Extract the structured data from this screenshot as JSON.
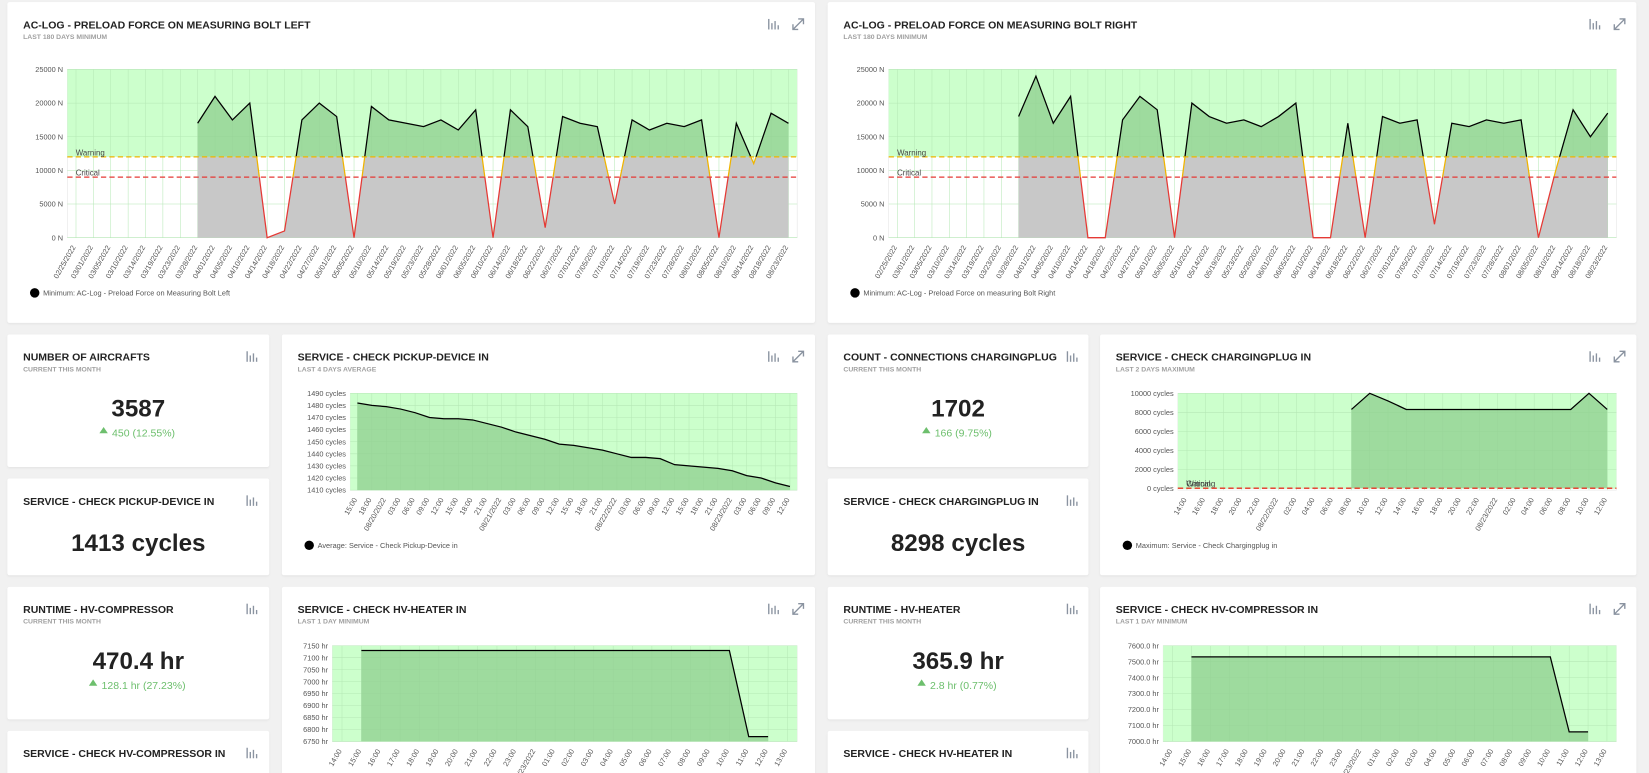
{
  "chart_data": [
    {
      "type": "line",
      "title": "AC-LOG - PRELOAD FORCE ON MEASURING BOLT LEFT",
      "subtitle": "LAST 180 DAYS MINIMUM",
      "categories": [
        "02/25/2022",
        "03/01/2022",
        "03/05/2022",
        "03/10/2022",
        "03/14/2022",
        "03/19/2022",
        "03/23/2022",
        "03/28/2022",
        "04/01/2022",
        "04/05/2022",
        "04/10/2022",
        "04/14/2022",
        "04/18/2022",
        "04/22/2022",
        "04/27/2022",
        "05/01/2022",
        "05/05/2022",
        "05/10/2022",
        "05/14/2022",
        "05/19/2022",
        "05/23/2022",
        "05/28/2022",
        "06/01/2022",
        "06/05/2022",
        "06/10/2022",
        "06/14/2022",
        "06/18/2022",
        "06/22/2022",
        "06/27/2022",
        "07/01/2022",
        "07/05/2022",
        "07/10/2022",
        "07/14/2022",
        "07/19/2022",
        "07/23/2022",
        "07/28/2022",
        "08/01/2022",
        "08/05/2022",
        "08/10/2022",
        "08/14/2022",
        "08/18/2022",
        "08/23/2022"
      ],
      "series": [
        {
          "name": "Minimum: AC-Log - Preload Force on Measuring Bolt Left",
          "color": "#000000",
          "values": [
            null,
            null,
            null,
            null,
            null,
            null,
            null,
            17000,
            21000,
            17500,
            20000,
            0,
            1000,
            17500,
            20000,
            18000,
            0,
            19500,
            17500,
            17000,
            16500,
            17500,
            16000,
            19000,
            0,
            19000,
            16500,
            1500,
            18000,
            17000,
            16500,
            5000,
            17500,
            16000,
            17000,
            16500,
            17500,
            0,
            17000,
            11000,
            18500,
            17000
          ]
        }
      ],
      "ylim": [
        0,
        25000
      ],
      "yticks": [
        {
          "value": 0,
          "label": "0 N"
        },
        {
          "value": 5000,
          "label": "5000 N"
        },
        {
          "value": 10000,
          "label": "10000 N"
        },
        {
          "value": 15000,
          "label": "15000 N"
        },
        {
          "value": 20000,
          "label": "20000 N"
        },
        {
          "value": 25000,
          "label": "25000 N"
        }
      ],
      "thresholds": [
        {
          "label": "Warning",
          "value": 12000,
          "color": "#f0b400"
        },
        {
          "label": "Critical",
          "value": 9000,
          "color": "#e53935"
        }
      ],
      "grid": true
    },
    {
      "type": "line",
      "title": "AC-LOG - PRELOAD FORCE ON MEASURING BOLT RIGHT",
      "subtitle": "LAST 180 DAYS MINIMUM",
      "categories": [
        "02/25/2022",
        "03/01/2022",
        "03/05/2022",
        "03/10/2022",
        "03/14/2022",
        "03/19/2022",
        "03/23/2022",
        "03/28/2022",
        "04/01/2022",
        "04/05/2022",
        "04/10/2022",
        "04/14/2022",
        "04/18/2022",
        "04/22/2022",
        "04/27/2022",
        "05/01/2022",
        "05/05/2022",
        "05/10/2022",
        "05/14/2022",
        "05/19/2022",
        "05/23/2022",
        "05/28/2022",
        "06/01/2022",
        "06/05/2022",
        "06/10/2022",
        "06/14/2022",
        "06/18/2022",
        "06/22/2022",
        "06/27/2022",
        "07/01/2022",
        "07/05/2022",
        "07/10/2022",
        "07/14/2022",
        "07/19/2022",
        "07/23/2022",
        "07/28/2022",
        "08/01/2022",
        "08/05/2022",
        "08/10/2022",
        "08/14/2022",
        "08/18/2022",
        "08/23/2022"
      ],
      "series": [
        {
          "name": "Minimum: AC-Log - Preload Force on measuring Bolt Right",
          "color": "#000000",
          "values": [
            null,
            null,
            null,
            null,
            null,
            null,
            null,
            18000,
            24000,
            17000,
            21000,
            0,
            0,
            17500,
            21000,
            19000,
            0,
            20000,
            18000,
            17000,
            17500,
            16500,
            18000,
            20000,
            0,
            0,
            17000,
            0,
            18000,
            17000,
            17500,
            2000,
            17000,
            16500,
            17500,
            17000,
            17500,
            0,
            10000,
            19000,
            15000,
            18500
          ]
        }
      ],
      "ylim": [
        0,
        25000
      ],
      "yticks": [
        {
          "value": 0,
          "label": "0 N"
        },
        {
          "value": 5000,
          "label": "5000 N"
        },
        {
          "value": 10000,
          "label": "10000 N"
        },
        {
          "value": 15000,
          "label": "15000 N"
        },
        {
          "value": 20000,
          "label": "20000 N"
        },
        {
          "value": 25000,
          "label": "25000 N"
        }
      ],
      "thresholds": [
        {
          "label": "Warning",
          "value": 12000,
          "color": "#f0b400"
        },
        {
          "label": "Critical",
          "value": 9000,
          "color": "#e53935"
        }
      ],
      "grid": true
    },
    {
      "type": "line",
      "title": "SERVICE - CHECK PICKUP-DEVICE IN",
      "subtitle": "LAST 4 DAYS AVERAGE",
      "categories": [
        "15:00",
        "18:00",
        "08/20/2022",
        "03:00",
        "06:00",
        "09:00",
        "12:00",
        "15:00",
        "18:00",
        "21:00",
        "08/21/2022",
        "03:00",
        "06:00",
        "09:00",
        "12:00",
        "15:00",
        "18:00",
        "21:00",
        "08/22/2022",
        "03:00",
        "06:00",
        "09:00",
        "12:00",
        "15:00",
        "18:00",
        "21:00",
        "08/23/2022",
        "03:00",
        "06:00",
        "09:00",
        "12:00"
      ],
      "series": [
        {
          "name": "Average: Service - Check Pickup-Device in",
          "color": "#000000",
          "values": [
            1482,
            1480,
            1479,
            1477,
            1474,
            1470,
            1469,
            1469,
            1468,
            1465,
            1462,
            1458,
            1455,
            1452,
            1448,
            1447,
            1445,
            1443,
            1440,
            1437,
            1437,
            1436,
            1431,
            1430,
            1429,
            1428,
            1426,
            1422,
            1420,
            1416,
            1413
          ]
        }
      ],
      "ylim": [
        1410,
        1490
      ],
      "yticks": [
        {
          "value": 1410,
          "label": "1410 cycles"
        },
        {
          "value": 1420,
          "label": "1420 cycles"
        },
        {
          "value": 1430,
          "label": "1430 cycles"
        },
        {
          "value": 1440,
          "label": "1440 cycles"
        },
        {
          "value": 1450,
          "label": "1450 cycles"
        },
        {
          "value": 1460,
          "label": "1460 cycles"
        },
        {
          "value": 1470,
          "label": "1470 cycles"
        },
        {
          "value": 1480,
          "label": "1480 cycles"
        },
        {
          "value": 1490,
          "label": "1490 cycles"
        }
      ],
      "grid": true
    },
    {
      "type": "line",
      "title": "SERVICE - CHECK CHARGINGPLUG IN",
      "subtitle": "LAST 2 DAYS MAXIMUM",
      "categories": [
        "14:00",
        "16:00",
        "18:00",
        "20:00",
        "22:00",
        "08/22/2022",
        "02:00",
        "04:00",
        "06:00",
        "08:00",
        "10:00",
        "12:00",
        "14:00",
        "16:00",
        "18:00",
        "20:00",
        "22:00",
        "08/23/2022",
        "02:00",
        "04:00",
        "06:00",
        "08:00",
        "10:00",
        "12:00"
      ],
      "series": [
        {
          "name": "Maximum: Service - Check  Chargingplug in",
          "color": "#000000",
          "values": [
            null,
            null,
            null,
            null,
            null,
            null,
            null,
            null,
            null,
            8300,
            10000,
            9200,
            8300,
            8300,
            8300,
            8300,
            8300,
            8300,
            8300,
            8300,
            8300,
            8300,
            10000,
            8300
          ]
        }
      ],
      "ylim": [
        -200,
        10000
      ],
      "yticks": [
        {
          "value": 0,
          "label": "0 cycles"
        },
        {
          "value": 2000,
          "label": "2000 cycles"
        },
        {
          "value": 4000,
          "label": "4000 cycles"
        },
        {
          "value": 6000,
          "label": "6000 cycles"
        },
        {
          "value": 8000,
          "label": "8000 cycles"
        },
        {
          "value": 10000,
          "label": "10000 cycles"
        }
      ],
      "thresholds": [
        {
          "label": "Warning",
          "value": 0,
          "color": "#f0b400"
        },
        {
          "label": "Critical",
          "value": 0,
          "color": "#e53935"
        }
      ],
      "grid": true
    },
    {
      "type": "line",
      "title": "SERVICE - CHECK HV-HEATER IN",
      "subtitle": "LAST 1 DAY MINIMUM",
      "categories": [
        "14:00",
        "15:00",
        "16:00",
        "17:00",
        "18:00",
        "19:00",
        "20:00",
        "21:00",
        "22:00",
        "23:00",
        "08/23/2022",
        "01:00",
        "02:00",
        "03:00",
        "04:00",
        "05:00",
        "06:00",
        "07:00",
        "08:00",
        "09:00",
        "10:00",
        "11:00",
        "12:00",
        "13:00"
      ],
      "series": [
        {
          "color": "#000000",
          "values": [
            null,
            7130,
            7130,
            7130,
            7130,
            7130,
            7130,
            7130,
            7130,
            7130,
            7130,
            7130,
            7130,
            7130,
            7130,
            7130,
            7130,
            7130,
            7130,
            7130,
            7130,
            6770,
            6770,
            null
          ]
        }
      ],
      "ylim": [
        6750,
        7150
      ],
      "yticks": [
        {
          "value": 6750,
          "label": "6750 hr"
        },
        {
          "value": 6800,
          "label": "6800 hr"
        },
        {
          "value": 6850,
          "label": "6850 hr"
        },
        {
          "value": 6900,
          "label": "6900 hr"
        },
        {
          "value": 6950,
          "label": "6950 hr"
        },
        {
          "value": 7000,
          "label": "7000 hr"
        },
        {
          "value": 7050,
          "label": "7050 hr"
        },
        {
          "value": 7100,
          "label": "7100 hr"
        },
        {
          "value": 7150,
          "label": "7150 hr"
        }
      ],
      "grid": true
    },
    {
      "type": "line",
      "title": "SERVICE - CHECK HV-COMPRESSOR IN",
      "subtitle": "LAST 1 DAY MINIMUM",
      "categories": [
        "14:00",
        "15:00",
        "16:00",
        "17:00",
        "18:00",
        "19:00",
        "20:00",
        "21:00",
        "22:00",
        "23:00",
        "08/23/2022",
        "01:00",
        "02:00",
        "03:00",
        "04:00",
        "05:00",
        "06:00",
        "07:00",
        "08:00",
        "09:00",
        "10:00",
        "11:00",
        "12:00",
        "13:00"
      ],
      "series": [
        {
          "color": "#000000",
          "values": [
            null,
            7530,
            7530,
            7530,
            7530,
            7530,
            7530,
            7530,
            7530,
            7530,
            7530,
            7530,
            7530,
            7530,
            7530,
            7530,
            7530,
            7530,
            7530,
            7530,
            7530,
            7060,
            7060,
            null
          ]
        }
      ],
      "ylim": [
        7000,
        7600
      ],
      "yticks": [
        {
          "value": 7000,
          "label": "7000.0 hr"
        },
        {
          "value": 7100,
          "label": "7100.0 hr"
        },
        {
          "value": 7200,
          "label": "7200.0 hr"
        },
        {
          "value": 7300,
          "label": "7300.0 hr"
        },
        {
          "value": 7400,
          "label": "7400.0 hr"
        },
        {
          "value": 7500,
          "label": "7500.0 hr"
        },
        {
          "value": 7600,
          "label": "7600.0 hr"
        }
      ],
      "grid": true
    }
  ],
  "kpis": [
    {
      "title": "NUMBER OF AIRCRAFTS",
      "subtitle": "CURRENT THIS MONTH",
      "value": 3587,
      "change": "450 (12.55%)"
    },
    {
      "title": "SERVICE - CHECK PICKUP-DEVICE IN",
      "value": "1413 cycles"
    },
    {
      "title": "RUNTIME - HV-COMPRESSOR",
      "subtitle": "CURRENT THIS MONTH",
      "value": "470.4 hr",
      "change": "128.1 hr (27.23%)"
    },
    {
      "title": "SERVICE - CHECK HV-COMPRESSOR IN"
    },
    {
      "title": "COUNT - CONNECTIONS CHARGINGPLUG",
      "subtitle": "CURRENT THIS MONTH",
      "value": 1702,
      "change": "166 (9.75%)"
    },
    {
      "title": "SERVICE - CHECK CHARGINGPLUG IN",
      "value": "8298 cycles"
    },
    {
      "title": "RUNTIME - HV-HEATER",
      "subtitle": "CURRENT THIS MONTH",
      "value": "365.9 hr",
      "change": "2.8 hr (0.77%)"
    },
    {
      "title": "SERVICE - CHECK HV-HEATER IN"
    }
  ]
}
